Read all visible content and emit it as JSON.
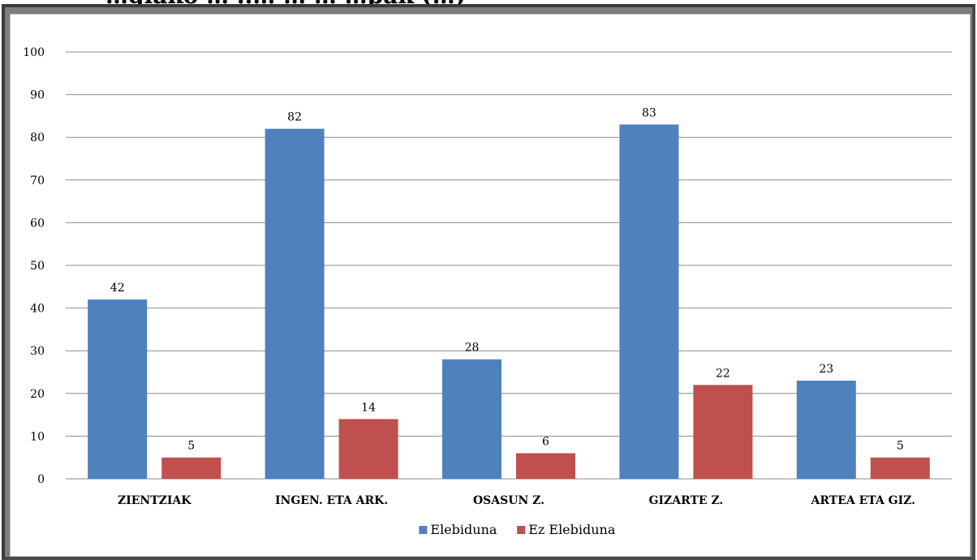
{
  "page": {
    "cut_title": "…giako … ..… … … …pak (…)"
  },
  "chart_data": {
    "type": "bar",
    "categories": [
      "ZIENTZIAK",
      "INGEN. ETA ARK.",
      "OSASUN Z.",
      "GIZARTE Z.",
      "ARTEA ETA GIZ."
    ],
    "series": [
      {
        "name": "Elebiduna",
        "values": [
          42,
          82,
          28,
          83,
          23
        ],
        "color": "#4f81bd"
      },
      {
        "name": "Ez Elebiduna",
        "values": [
          5,
          14,
          6,
          22,
          5
        ],
        "color": "#c0504d"
      }
    ],
    "ylim": [
      0,
      100
    ],
    "yticks": [
      0,
      10,
      20,
      30,
      40,
      50,
      60,
      70,
      80,
      90,
      100
    ],
    "grid": true,
    "legend": "bottom",
    "data_labels": true
  }
}
